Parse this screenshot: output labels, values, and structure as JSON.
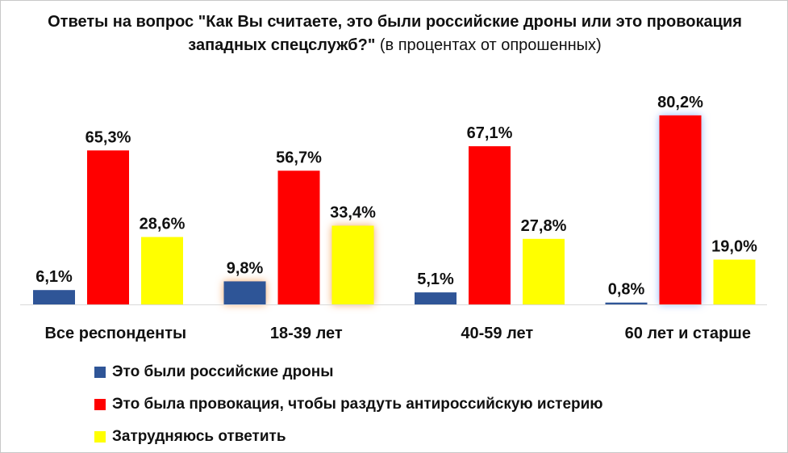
{
  "chart_data": {
    "type": "bar",
    "title_bold": "Ответы на вопрос \"Как Вы считаете, это были российские дроны или это провокация западных спецслужб?\"",
    "title_normal": " (в процентах от опрошенных)",
    "categories": [
      "Все респонденты",
      "18-39 лет",
      "40-59 лет",
      "60 лет и старше"
    ],
    "series": [
      {
        "name": "Это были российские дроны",
        "color": "#2f5597",
        "values": [
          6.1,
          9.8,
          5.1,
          0.8
        ],
        "labels": [
          "6,1%",
          "9,8%",
          "5,1%",
          "0,8%"
        ]
      },
      {
        "name": "Это была провокация, чтобы раздуть антироссийскую истерию",
        "color": "#ff0000",
        "values": [
          65.3,
          56.7,
          67.1,
          80.2
        ],
        "labels": [
          "65,3%",
          "56,7%",
          "67,1%",
          "80,2%"
        ]
      },
      {
        "name": "Затрудняюсь ответить",
        "color": "#ffff00",
        "values": [
          28.6,
          33.4,
          27.8,
          19.0
        ],
        "labels": [
          "28,6%",
          "33,4%",
          "27,8%",
          "19,0%"
        ]
      }
    ],
    "highlights": [
      {
        "category": 1,
        "series": 0,
        "glow": "orange"
      },
      {
        "category": 1,
        "series": 2,
        "glow": "orange"
      },
      {
        "category": 3,
        "series": 1,
        "glow": "blue"
      }
    ],
    "legend_position": "bottom-left",
    "grid": false
  }
}
